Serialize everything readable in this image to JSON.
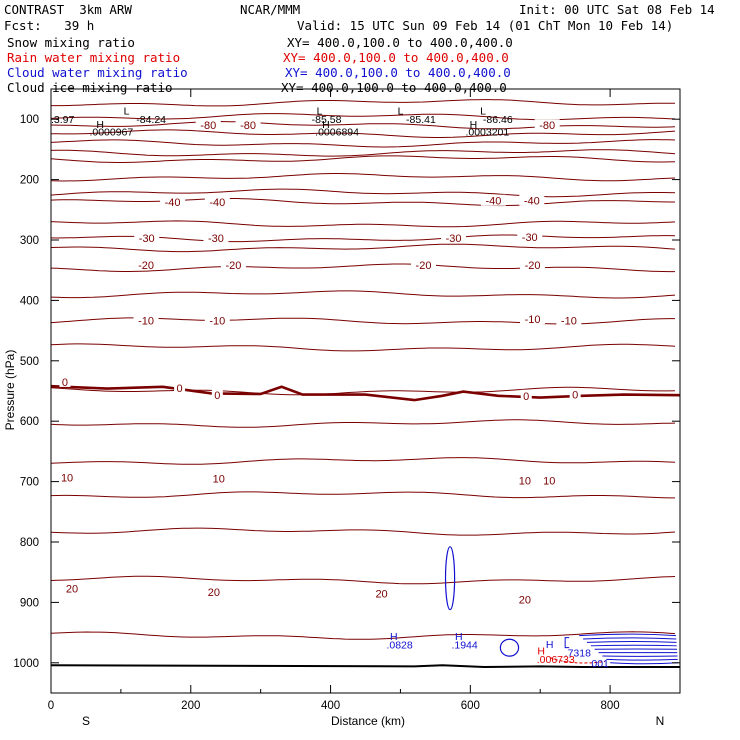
{
  "header": {
    "model": "CONTRAST  3km ARW",
    "org": "NCAR/MMM",
    "init": "Init: 00 UTC Sat 08 Feb 14",
    "fcst": "Fcst:   39 h",
    "valid": "Valid: 15 UTC Sun 09 Feb 14 (01 ChT Mon 10 Feb 14)"
  },
  "legend": [
    {
      "label": "Snow mixing ratio",
      "xy": "XY= 400.0,100.0 to 400.0,400.0",
      "color": "#000000"
    },
    {
      "label": "Rain water mixing ratio",
      "xy": "XY= 400.0,100.0 to 400.0,400.0",
      "color": "#e00000"
    },
    {
      "label": "Cloud water mixing ratio",
      "xy": "XY= 400.0,100.0 to 400.0,400.0",
      "color": "#1010d0"
    },
    {
      "label": "Cloud ice mixing ratio",
      "xy": "XY= 400.0,100.0 to 400.0,400.0",
      "color": "#000000"
    }
  ],
  "colors": {
    "temperature": "#7a0000",
    "cloud_water": "#1010d0",
    "rain": "#e00000",
    "axis": "#000000"
  },
  "chart_data": {
    "type": "line",
    "title": "",
    "xlabel": "Distance (km)",
    "ylabel": "Pressure (hPa)",
    "xlim": [
      0,
      900
    ],
    "ylim": [
      1050,
      50
    ],
    "x_ticks": [
      "0",
      "200",
      "400",
      "600",
      "800"
    ],
    "y_ticks": [
      "100",
      "200",
      "300",
      "400",
      "500",
      "600",
      "700",
      "800",
      "900",
      "1000"
    ],
    "end_labels": {
      "left": "S",
      "right": "N"
    },
    "isotherms": [
      {
        "p": 73,
        "label": null
      },
      {
        "p": 96,
        "label": null
      },
      {
        "p": 110,
        "label": "-80"
      },
      {
        "p": 124,
        "label": null
      },
      {
        "p": 140,
        "label": null
      },
      {
        "p": 156,
        "label": null
      },
      {
        "p": 166,
        "label": null
      },
      {
        "p": 196,
        "label": null
      },
      {
        "p": 222,
        "label": null
      },
      {
        "p": 237,
        "label": "-40"
      },
      {
        "p": 273,
        "label": null
      },
      {
        "p": 297,
        "label": "-30"
      },
      {
        "p": 313,
        "label": null
      },
      {
        "p": 346,
        "label": "-20"
      },
      {
        "p": 390,
        "label": null
      },
      {
        "p": 434,
        "label": "-10"
      },
      {
        "p": 478,
        "label": null
      },
      {
        "p": 550,
        "label": "0"
      },
      {
        "p": 604,
        "label": null
      },
      {
        "p": 666,
        "label": null
      },
      {
        "p": 722,
        "label": "10"
      },
      {
        "p": 783,
        "label": null
      },
      {
        "p": 863,
        "label": "20"
      },
      {
        "p": 955,
        "label": null
      }
    ],
    "label_positions": {
      "-80": [
        {
          "x": 225,
          "p": 110
        },
        {
          "x": 282,
          "p": 110
        },
        {
          "x": 710,
          "p": 110
        }
      ],
      "-40": [
        {
          "x": 174,
          "p": 237
        },
        {
          "x": 238,
          "p": 237
        },
        {
          "x": 633,
          "p": 235
        },
        {
          "x": 688,
          "p": 235
        }
      ],
      "-30": [
        {
          "x": 137,
          "p": 297
        },
        {
          "x": 236,
          "p": 297
        },
        {
          "x": 576,
          "p": 297
        },
        {
          "x": 685,
          "p": 295
        }
      ],
      "-20": [
        {
          "x": 136,
          "p": 341
        },
        {
          "x": 261,
          "p": 341
        },
        {
          "x": 533,
          "p": 341
        },
        {
          "x": 689,
          "p": 341
        }
      ],
      "-10": [
        {
          "x": 136,
          "p": 433
        },
        {
          "x": 238,
          "p": 433
        },
        {
          "x": 689,
          "p": 431
        },
        {
          "x": 741,
          "p": 433
        }
      ],
      "0": [
        {
          "x": 20,
          "p": 535
        },
        {
          "x": 184,
          "p": 545
        },
        {
          "x": 238,
          "p": 557
        },
        {
          "x": 680,
          "p": 558
        },
        {
          "x": 750,
          "p": 556
        }
      ],
      "10": [
        {
          "x": 23,
          "p": 693
        },
        {
          "x": 240,
          "p": 695
        },
        {
          "x": 678,
          "p": 698
        },
        {
          "x": 713,
          "p": 698
        }
      ],
      "20": [
        {
          "x": 30,
          "p": 877
        },
        {
          "x": 233,
          "p": 883
        },
        {
          "x": 473,
          "p": 885
        },
        {
          "x": 678,
          "p": 895
        }
      ]
    },
    "freezing_level": [
      [
        0,
        542
      ],
      [
        80,
        546
      ],
      [
        160,
        543
      ],
      [
        230,
        554
      ],
      [
        300,
        555
      ],
      [
        330,
        543
      ],
      [
        360,
        556
      ],
      [
        450,
        556
      ],
      [
        520,
        565
      ],
      [
        560,
        558
      ],
      [
        590,
        551
      ],
      [
        640,
        558
      ],
      [
        700,
        561
      ],
      [
        760,
        558
      ],
      [
        820,
        556
      ],
      [
        900,
        557
      ]
    ],
    "surface": [
      [
        0,
        1004
      ],
      [
        520,
        1006
      ],
      [
        560,
        1004
      ],
      [
        620,
        1007
      ],
      [
        700,
        1006
      ],
      [
        760,
        1007
      ],
      [
        900,
        1007
      ]
    ],
    "annotations": [
      {
        "text": "L",
        "x": 104,
        "p": 86
      },
      {
        "text": "-84.24",
        "x": 122,
        "p": 100
      },
      {
        "text": "H",
        "x": 65,
        "p": 108
      },
      {
        "text": ".0000967",
        "x": 55,
        "p": 120
      },
      {
        "text": ".3.97",
        "x": 0,
        "p": 100
      },
      {
        "text": "L",
        "x": 380,
        "p": 86
      },
      {
        "text": "-85.58",
        "x": 373,
        "p": 100
      },
      {
        "text": "H",
        "x": 388,
        "p": 108
      },
      {
        "text": ".0006894",
        "x": 378,
        "p": 120
      },
      {
        "text": "L",
        "x": 496,
        "p": 86
      },
      {
        "text": "-85.41",
        "x": 508,
        "p": 100
      },
      {
        "text": "L",
        "x": 614,
        "p": 86
      },
      {
        "text": "-86.46",
        "x": 618,
        "p": 100
      },
      {
        "text": "H",
        "x": 599,
        "p": 108
      },
      {
        "text": ".0003201",
        "x": 593,
        "p": 120
      }
    ],
    "cloud_annotations": [
      {
        "text": "H",
        "x": 485,
        "p": 956
      },
      {
        "text": ".0828",
        "x": 480,
        "p": 970
      },
      {
        "text": "H",
        "x": 578,
        "p": 956
      },
      {
        "text": ".1944",
        "x": 573,
        "p": 970
      },
      {
        "text": "H",
        "x": 708,
        "p": 969
      },
      {
        "text": ".7318",
        "x": 735,
        "p": 983
      },
      {
        "text": ".001",
        "x": 769,
        "p": 1000
      }
    ],
    "rain_annotations": [
      {
        "text": "H",
        "x": 696,
        "p": 980
      },
      {
        "text": ".006733",
        "x": 695,
        "p": 994
      }
    ],
    "cloud_water_contours": [
      {
        "cx": 571,
        "cp": 860,
        "rx": 5,
        "rp": 52
      },
      {
        "cx": 656,
        "cp": 975,
        "rx": 10,
        "rp": 14
      }
    ],
    "cloud_water_block": {
      "x0": 750,
      "x1": 900,
      "p0": 955,
      "p1": 1000,
      "n": 9
    }
  }
}
